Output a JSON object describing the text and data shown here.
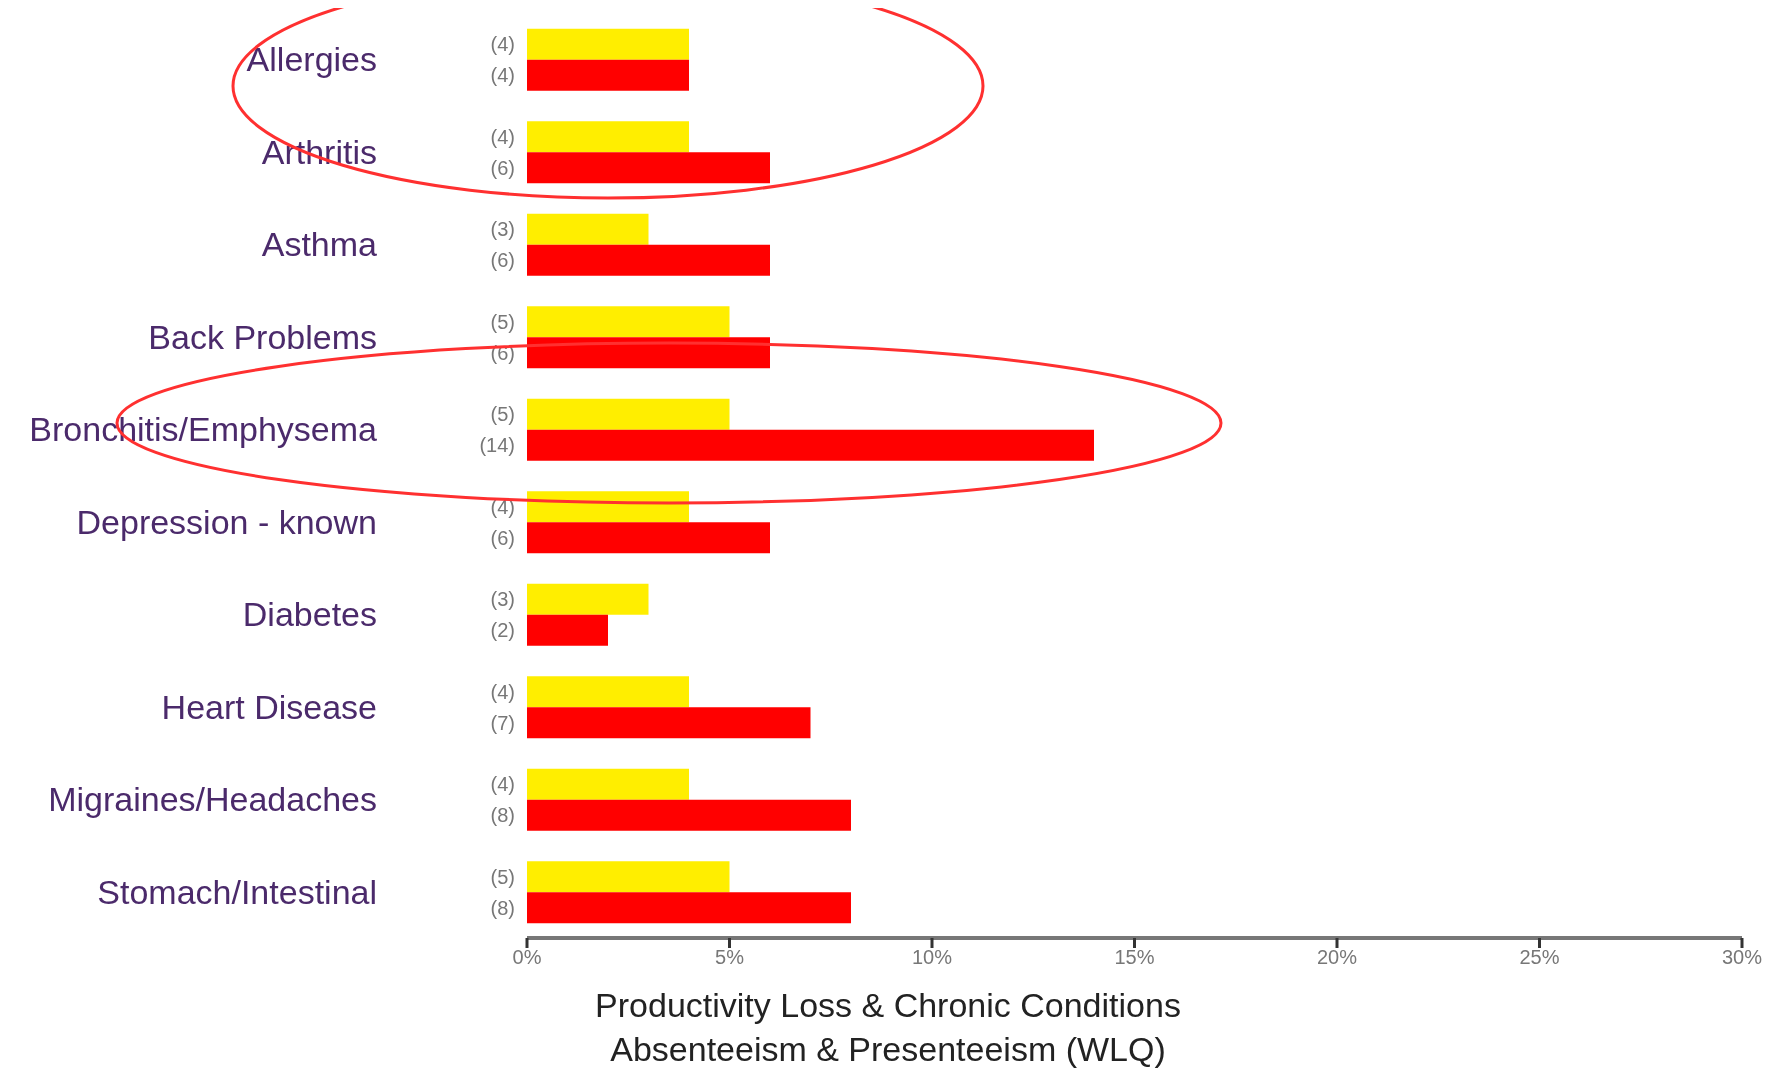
{
  "chart_data": {
    "type": "bar",
    "orientation": "horizontal",
    "title": "Productivity Loss & Chronic Conditions",
    "subtitle": "Absenteeism & Presenteeism (WLQ)",
    "categories": [
      "Allergies",
      "Arthritis",
      "Asthma",
      "Back Problems",
      "Bronchitis/Emphysema",
      "Depression - known",
      "Diabetes",
      "Heart Disease",
      "Migraines/Headaches",
      "Stomach/Intestinal"
    ],
    "series": [
      {
        "color": "#ffee00",
        "values": [
          4,
          4,
          3,
          5,
          5,
          4,
          3,
          4,
          4,
          5
        ],
        "value_labels": [
          "(4)",
          "(4)",
          "(3)",
          "(5)",
          "(5)",
          "(4)",
          "(3)",
          "(4)",
          "(4)",
          "(5)"
        ]
      },
      {
        "color": "#ff0000",
        "values": [
          4,
          6,
          6,
          6,
          14,
          6,
          2,
          7,
          8,
          8
        ],
        "value_labels": [
          "(4)",
          "(6)",
          "(6)",
          "(6)",
          "(14)",
          "(6)",
          "(2)",
          "(7)",
          "(8)",
          "(8)"
        ]
      }
    ],
    "xlim": [
      0,
      30
    ],
    "xticks": [
      {
        "value": 0,
        "label": "0%"
      },
      {
        "value": 5,
        "label": "5%"
      },
      {
        "value": 10,
        "label": "10%"
      },
      {
        "value": 15,
        "label": "15%"
      },
      {
        "value": 20,
        "label": "20%"
      },
      {
        "value": 25,
        "label": "25%"
      },
      {
        "value": 30,
        "label": "30%"
      }
    ],
    "grid": false,
    "legend": false
  }
}
